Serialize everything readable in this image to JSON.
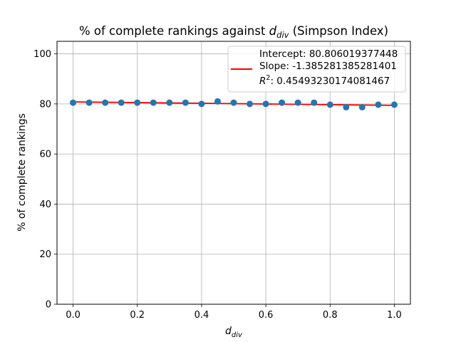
{
  "chart_data": {
    "type": "scatter",
    "title": {
      "pre": "% of complete rankings against ",
      "var": "d",
      "sub": "div",
      "post": " (Simpson Index)"
    },
    "xlabel": {
      "var": "d",
      "sub": "div"
    },
    "ylabel": "% of complete rankings",
    "xlim": [
      -0.05,
      1.05
    ],
    "ylim": [
      0,
      105
    ],
    "xticks": [
      0.0,
      0.2,
      0.4,
      0.6,
      0.8,
      1.0
    ],
    "xtick_labels": [
      "0.0",
      "0.2",
      "0.4",
      "0.6",
      "0.8",
      "1.0"
    ],
    "yticks": [
      0,
      20,
      40,
      60,
      80,
      100
    ],
    "ytick_labels": [
      "0",
      "20",
      "40",
      "60",
      "80",
      "100"
    ],
    "grid": true,
    "legend_position": "top-right",
    "points": {
      "color": "#1f77b4",
      "x": [
        0.0,
        0.05,
        0.1,
        0.15,
        0.2,
        0.25,
        0.3,
        0.35,
        0.4,
        0.45,
        0.5,
        0.55,
        0.6,
        0.65,
        0.7,
        0.75,
        0.8,
        0.85,
        0.9,
        0.95,
        1.0
      ],
      "y": [
        80.5,
        80.5,
        80.5,
        80.5,
        80.5,
        80.5,
        80.5,
        80.5,
        80.0,
        81.0,
        80.5,
        80.0,
        80.0,
        80.5,
        80.5,
        80.5,
        79.7,
        78.7,
        78.7,
        79.7,
        79.7
      ]
    },
    "fit_line": {
      "color": "#ff0000",
      "intercept": 80.806019377448,
      "slope": -1.385281385281401,
      "x_range": [
        0.0,
        1.0
      ]
    },
    "legend": {
      "line1": "Intercept: 80.806019377448",
      "line2": "Slope: -1.385281385281401",
      "r2_label": "R",
      "r2_sup": "2",
      "r2_value": ": 0.45493230174081467"
    }
  }
}
